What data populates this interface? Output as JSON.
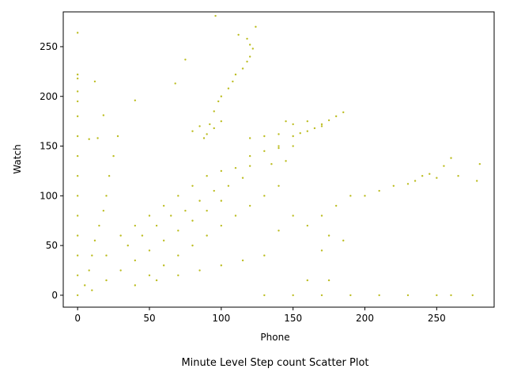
{
  "chart_data": {
    "type": "scatter",
    "title": "",
    "caption": "Minute Level Step count Scatter Plot",
    "xlabel": "Phone",
    "ylabel": "Watch",
    "xlim": [
      -10,
      290
    ],
    "ylim": [
      -12,
      285
    ],
    "xticks": [
      0,
      50,
      100,
      150,
      200,
      250
    ],
    "yticks": [
      0,
      50,
      100,
      150,
      200,
      250
    ],
    "xtick_labels": [
      "0",
      "50",
      "100",
      "150",
      "200",
      "250"
    ],
    "ytick_labels": [
      "0",
      "50",
      "100",
      "150",
      "200",
      "250"
    ],
    "grid": false,
    "legend": false,
    "color": "#bcbd22",
    "series": [
      {
        "points": [
          [
            0,
            264
          ],
          [
            0,
            222
          ],
          [
            0,
            218
          ],
          [
            0,
            205
          ],
          [
            0,
            195
          ],
          [
            0,
            180
          ],
          [
            0,
            160
          ],
          [
            0,
            140
          ],
          [
            0,
            120
          ],
          [
            0,
            100
          ],
          [
            0,
            80
          ],
          [
            0,
            60
          ],
          [
            0,
            40
          ],
          [
            0,
            20
          ],
          [
            0,
            0
          ],
          [
            5,
            10
          ],
          [
            8,
            25
          ],
          [
            10,
            40
          ],
          [
            12,
            55
          ],
          [
            15,
            70
          ],
          [
            18,
            85
          ],
          [
            20,
            100
          ],
          [
            22,
            120
          ],
          [
            25,
            140
          ],
          [
            28,
            160
          ],
          [
            10,
            5
          ],
          [
            20,
            15
          ],
          [
            30,
            25
          ],
          [
            40,
            35
          ],
          [
            50,
            45
          ],
          [
            60,
            55
          ],
          [
            70,
            65
          ],
          [
            80,
            75
          ],
          [
            90,
            85
          ],
          [
            100,
            95
          ],
          [
            30,
            60
          ],
          [
            40,
            70
          ],
          [
            50,
            80
          ],
          [
            60,
            90
          ],
          [
            70,
            100
          ],
          [
            80,
            110
          ],
          [
            90,
            120
          ],
          [
            100,
            125
          ],
          [
            110,
            128
          ],
          [
            120,
            130
          ],
          [
            20,
            40
          ],
          [
            35,
            50
          ],
          [
            45,
            60
          ],
          [
            55,
            70
          ],
          [
            65,
            80
          ],
          [
            75,
            85
          ],
          [
            85,
            95
          ],
          [
            95,
            105
          ],
          [
            105,
            110
          ],
          [
            115,
            118
          ],
          [
            50,
            20
          ],
          [
            60,
            30
          ],
          [
            70,
            40
          ],
          [
            80,
            50
          ],
          [
            90,
            60
          ],
          [
            100,
            70
          ],
          [
            110,
            80
          ],
          [
            120,
            90
          ],
          [
            130,
            100
          ],
          [
            140,
            110
          ],
          [
            40,
            10
          ],
          [
            55,
            15
          ],
          [
            70,
            20
          ],
          [
            85,
            25
          ],
          [
            100,
            30
          ],
          [
            115,
            35
          ],
          [
            130,
            40
          ],
          [
            80,
            165
          ],
          [
            85,
            170
          ],
          [
            90,
            162
          ],
          [
            95,
            168
          ],
          [
            100,
            175
          ],
          [
            88,
            158
          ],
          [
            92,
            172
          ],
          [
            95,
            185
          ],
          [
            98,
            195
          ],
          [
            100,
            200
          ],
          [
            105,
            208
          ],
          [
            108,
            215
          ],
          [
            110,
            222
          ],
          [
            115,
            228
          ],
          [
            118,
            235
          ],
          [
            120,
            240
          ],
          [
            122,
            248
          ],
          [
            112,
            262
          ],
          [
            118,
            258
          ],
          [
            120,
            252
          ],
          [
            124,
            270
          ],
          [
            96,
            281
          ],
          [
            120,
            158
          ],
          [
            130,
            160
          ],
          [
            140,
            162
          ],
          [
            150,
            160
          ],
          [
            155,
            163
          ],
          [
            160,
            165
          ],
          [
            165,
            168
          ],
          [
            170,
            172
          ],
          [
            175,
            176
          ],
          [
            180,
            180
          ],
          [
            185,
            184
          ],
          [
            145,
            175
          ],
          [
            150,
            172
          ],
          [
            160,
            175
          ],
          [
            170,
            170
          ],
          [
            140,
            150
          ],
          [
            150,
            150
          ],
          [
            120,
            140
          ],
          [
            130,
            145
          ],
          [
            140,
            148
          ],
          [
            135,
            132
          ],
          [
            145,
            135
          ],
          [
            170,
            80
          ],
          [
            180,
            90
          ],
          [
            190,
            100
          ],
          [
            200,
            100
          ],
          [
            210,
            105
          ],
          [
            220,
            110
          ],
          [
            230,
            112
          ],
          [
            235,
            115
          ],
          [
            240,
            120
          ],
          [
            245,
            122
          ],
          [
            250,
            118
          ],
          [
            255,
            130
          ],
          [
            260,
            138
          ],
          [
            265,
            120
          ],
          [
            278,
            115
          ],
          [
            280,
            132
          ],
          [
            150,
            80
          ],
          [
            160,
            70
          ],
          [
            175,
            60
          ],
          [
            185,
            55
          ],
          [
            140,
            65
          ],
          [
            170,
            45
          ],
          [
            160,
            15
          ],
          [
            175,
            15
          ],
          [
            130,
            0
          ],
          [
            150,
            0
          ],
          [
            170,
            0
          ],
          [
            190,
            0
          ],
          [
            210,
            0
          ],
          [
            230,
            0
          ],
          [
            250,
            0
          ],
          [
            260,
            0
          ],
          [
            275,
            0
          ],
          [
            12,
            215
          ],
          [
            18,
            181
          ],
          [
            40,
            196
          ],
          [
            75,
            237
          ],
          [
            68,
            213
          ],
          [
            14,
            158
          ],
          [
            8,
            157
          ]
        ]
      }
    ]
  }
}
